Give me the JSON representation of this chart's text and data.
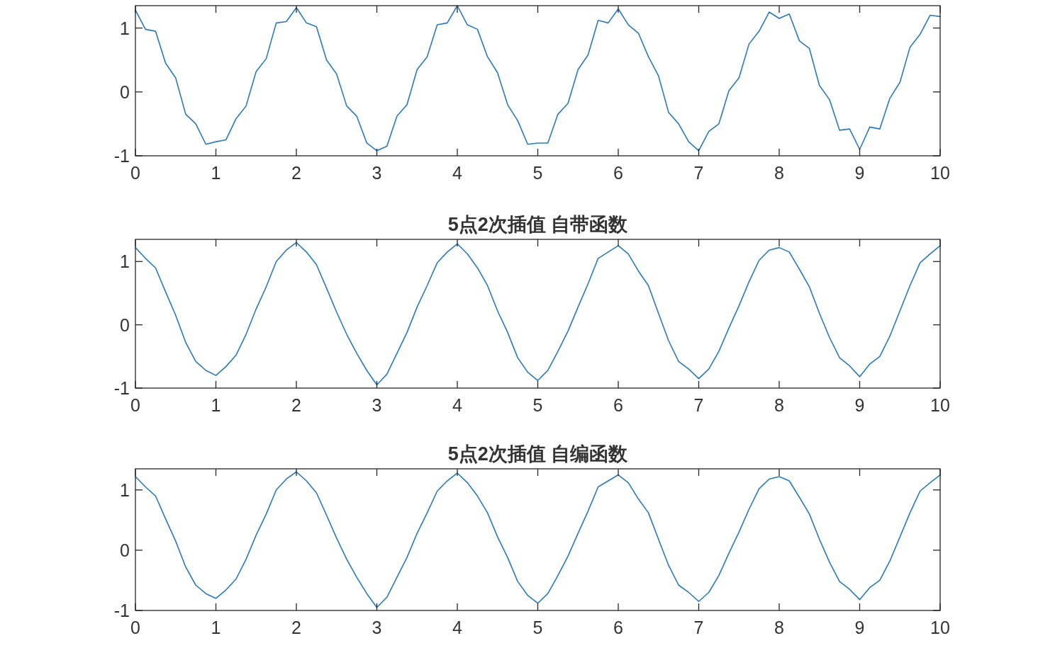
{
  "chart_data": [
    {
      "type": "line",
      "xlim": [
        0,
        10
      ],
      "ylim": [
        -1,
        1.35
      ],
      "xticks": [
        0,
        1,
        2,
        3,
        4,
        5,
        6,
        7,
        8,
        9,
        10
      ],
      "yticks": [
        -1,
        0,
        1
      ],
      "grid": false,
      "line_style": "solid",
      "x": [
        0,
        0.125,
        0.25,
        0.375,
        0.5,
        0.625,
        0.75,
        0.875,
        1,
        1.125,
        1.25,
        1.375,
        1.5,
        1.625,
        1.75,
        1.875,
        2,
        2.125,
        2.25,
        2.375,
        2.5,
        2.625,
        2.75,
        2.875,
        3,
        3.125,
        3.25,
        3.375,
        3.5,
        3.625,
        3.75,
        3.875,
        4,
        4.125,
        4.25,
        4.375,
        4.5,
        4.625,
        4.75,
        4.875,
        5,
        5.125,
        5.25,
        5.375,
        5.5,
        5.625,
        5.75,
        5.875,
        6,
        6.125,
        6.25,
        6.375,
        6.5,
        6.625,
        6.75,
        6.875,
        7,
        7.125,
        7.25,
        7.375,
        7.5,
        7.625,
        7.75,
        7.875,
        8,
        8.125,
        8.25,
        8.375,
        8.5,
        8.625,
        8.75,
        8.875,
        9,
        9.125,
        9.25,
        9.375,
        9.5,
        9.625,
        9.75,
        9.875,
        10
      ],
      "series": [
        {
          "color": "#2a7ab9",
          "values": [
            1.28,
            0.98,
            0.95,
            0.45,
            0.22,
            -0.35,
            -0.5,
            -0.82,
            -0.78,
            -0.75,
            -0.42,
            -0.22,
            0.32,
            0.52,
            1.08,
            1.1,
            1.32,
            1.08,
            1.02,
            0.5,
            0.28,
            -0.22,
            -0.38,
            -0.8,
            -0.92,
            -0.85,
            -0.38,
            -0.2,
            0.35,
            0.55,
            1.05,
            1.08,
            1.35,
            1.05,
            0.98,
            0.55,
            0.3,
            -0.2,
            -0.45,
            -0.82,
            -0.8,
            -0.8,
            -0.35,
            -0.18,
            0.35,
            0.58,
            1.12,
            1.08,
            1.3,
            1.05,
            0.92,
            0.55,
            0.25,
            -0.32,
            -0.5,
            -0.78,
            -0.92,
            -0.62,
            -0.5,
            0.02,
            0.22,
            0.75,
            0.95,
            1.25,
            1.15,
            1.22,
            0.8,
            0.68,
            0.1,
            -0.12,
            -0.6,
            -0.58,
            -0.9,
            -0.55,
            -0.58,
            -0.1,
            0.15,
            0.7,
            0.9,
            1.2,
            1.18
          ]
        }
      ]
    },
    {
      "type": "line",
      "title": "5点2次插值 自带函数",
      "xlim": [
        0,
        10
      ],
      "ylim": [
        -1,
        1.35
      ],
      "xticks": [
        0,
        1,
        2,
        3,
        4,
        5,
        6,
        7,
        8,
        9,
        10
      ],
      "yticks": [
        -1,
        0,
        1
      ],
      "grid": false,
      "line_style": "solid",
      "x": [
        0,
        0.125,
        0.25,
        0.375,
        0.5,
        0.625,
        0.75,
        0.875,
        1,
        1.125,
        1.25,
        1.375,
        1.5,
        1.625,
        1.75,
        1.875,
        2,
        2.125,
        2.25,
        2.375,
        2.5,
        2.625,
        2.75,
        2.875,
        3,
        3.125,
        3.25,
        3.375,
        3.5,
        3.625,
        3.75,
        3.875,
        4,
        4.125,
        4.25,
        4.375,
        4.5,
        4.625,
        4.75,
        4.875,
        5,
        5.125,
        5.25,
        5.375,
        5.5,
        5.625,
        5.75,
        5.875,
        6,
        6.125,
        6.25,
        6.375,
        6.5,
        6.625,
        6.75,
        6.875,
        7,
        7.125,
        7.25,
        7.375,
        7.5,
        7.625,
        7.75,
        7.875,
        8,
        8.125,
        8.25,
        8.375,
        8.5,
        8.625,
        8.75,
        8.875,
        9,
        9.125,
        9.25,
        9.375,
        9.5,
        9.625,
        9.75,
        9.875,
        10
      ],
      "series": [
        {
          "color": "#2a7ab9",
          "values": [
            1.22,
            1.05,
            0.9,
            0.52,
            0.15,
            -0.28,
            -0.58,
            -0.72,
            -0.8,
            -0.66,
            -0.48,
            -0.15,
            0.25,
            0.6,
            1.0,
            1.18,
            1.3,
            1.15,
            0.95,
            0.58,
            0.2,
            -0.15,
            -0.45,
            -0.72,
            -0.95,
            -0.78,
            -0.45,
            -0.12,
            0.28,
            0.62,
            0.98,
            1.15,
            1.28,
            1.12,
            0.9,
            0.62,
            0.22,
            -0.12,
            -0.52,
            -0.75,
            -0.88,
            -0.72,
            -0.42,
            -0.1,
            0.28,
            0.65,
            1.05,
            1.15,
            1.25,
            1.12,
            0.85,
            0.62,
            0.18,
            -0.25,
            -0.58,
            -0.7,
            -0.85,
            -0.7,
            -0.42,
            -0.05,
            0.3,
            0.68,
            1.02,
            1.18,
            1.22,
            1.15,
            0.88,
            0.6,
            0.18,
            -0.2,
            -0.52,
            -0.65,
            -0.82,
            -0.62,
            -0.5,
            -0.18,
            0.22,
            0.62,
            0.98,
            1.12,
            1.25
          ]
        }
      ]
    },
    {
      "type": "line",
      "title": "5点2次插值 自编函数",
      "xlim": [
        0,
        10
      ],
      "ylim": [
        -1,
        1.35
      ],
      "xticks": [
        0,
        1,
        2,
        3,
        4,
        5,
        6,
        7,
        8,
        9,
        10
      ],
      "yticks": [
        -1,
        0,
        1
      ],
      "grid": false,
      "line_style": "solid",
      "x": [
        0,
        0.125,
        0.25,
        0.375,
        0.5,
        0.625,
        0.75,
        0.875,
        1,
        1.125,
        1.25,
        1.375,
        1.5,
        1.625,
        1.75,
        1.875,
        2,
        2.125,
        2.25,
        2.375,
        2.5,
        2.625,
        2.75,
        2.875,
        3,
        3.125,
        3.25,
        3.375,
        3.5,
        3.625,
        3.75,
        3.875,
        4,
        4.125,
        4.25,
        4.375,
        4.5,
        4.625,
        4.75,
        4.875,
        5,
        5.125,
        5.25,
        5.375,
        5.5,
        5.625,
        5.75,
        5.875,
        6,
        6.125,
        6.25,
        6.375,
        6.5,
        6.625,
        6.75,
        6.875,
        7,
        7.125,
        7.25,
        7.375,
        7.5,
        7.625,
        7.75,
        7.875,
        8,
        8.125,
        8.25,
        8.375,
        8.5,
        8.625,
        8.75,
        8.875,
        9,
        9.125,
        9.25,
        9.375,
        9.5,
        9.625,
        9.75,
        9.875,
        10
      ],
      "series": [
        {
          "color": "#2a7ab9",
          "values": [
            1.22,
            1.05,
            0.9,
            0.52,
            0.15,
            -0.28,
            -0.58,
            -0.72,
            -0.8,
            -0.66,
            -0.48,
            -0.15,
            0.25,
            0.6,
            1.0,
            1.18,
            1.3,
            1.15,
            0.95,
            0.58,
            0.2,
            -0.15,
            -0.45,
            -0.72,
            -0.95,
            -0.78,
            -0.45,
            -0.12,
            0.28,
            0.62,
            0.98,
            1.15,
            1.28,
            1.12,
            0.9,
            0.62,
            0.22,
            -0.12,
            -0.52,
            -0.75,
            -0.88,
            -0.72,
            -0.42,
            -0.1,
            0.28,
            0.65,
            1.05,
            1.15,
            1.25,
            1.12,
            0.85,
            0.62,
            0.18,
            -0.25,
            -0.58,
            -0.7,
            -0.85,
            -0.7,
            -0.42,
            -0.05,
            0.3,
            0.68,
            1.02,
            1.18,
            1.22,
            1.15,
            0.88,
            0.6,
            0.18,
            -0.2,
            -0.52,
            -0.65,
            -0.82,
            -0.62,
            -0.5,
            -0.18,
            0.22,
            0.62,
            0.98,
            1.12,
            1.25
          ]
        }
      ]
    }
  ]
}
